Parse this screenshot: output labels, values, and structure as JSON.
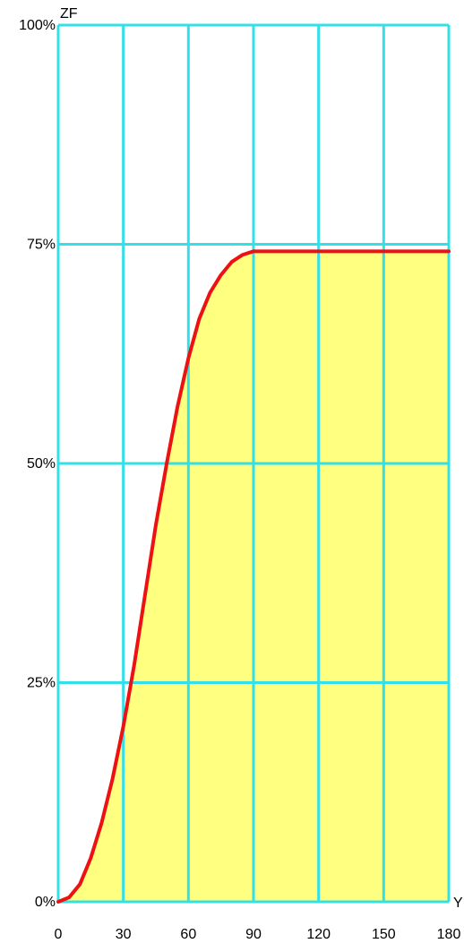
{
  "chart_data": {
    "type": "area",
    "title": "",
    "xlabel": "Y",
    "ylabel": "ZF",
    "xlim": [
      0,
      180
    ],
    "ylim": [
      0,
      100
    ],
    "x_ticks": [
      0,
      30,
      60,
      90,
      120,
      150,
      180
    ],
    "x_tick_labels": [
      "0",
      "30",
      "60",
      "90",
      "120",
      "150",
      "180"
    ],
    "y_ticks": [
      0,
      25,
      50,
      75,
      100
    ],
    "y_tick_labels": [
      "0%",
      "25%",
      "50%",
      "75%",
      "100%"
    ],
    "grid": true,
    "series": [
      {
        "x": [
          0,
          5,
          10,
          15,
          20,
          25,
          30,
          35,
          40,
          45,
          50,
          55,
          60,
          65,
          70,
          75,
          80,
          85,
          90,
          100,
          120,
          150,
          180
        ],
        "values": [
          0,
          0.5,
          2,
          5,
          9,
          14,
          20,
          27,
          35,
          43,
          50,
          56.5,
          62,
          66.5,
          69.5,
          71.5,
          73,
          73.8,
          74.2,
          74.2,
          74.2,
          74.2,
          74.2
        ]
      }
    ],
    "colors": {
      "grid": "#33e0e8",
      "fill": "#ffff80",
      "line": "#ee1111",
      "text": "#000000",
      "background": "#ffffff"
    }
  }
}
